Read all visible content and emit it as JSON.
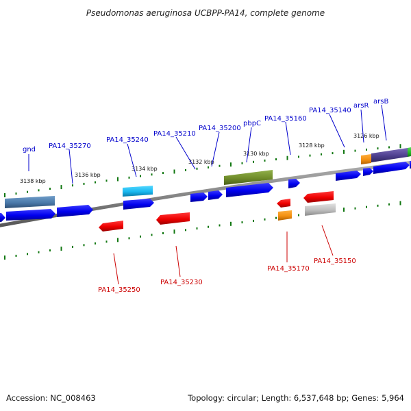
{
  "title": "Pseudomonas aeruginosa UCBPP-PA14, complete genome",
  "footer": {
    "accession": "Accession: NC_008463",
    "topology": "Topology: circular; Length: 6,537,648 bp; Genes: 5,964"
  },
  "colors": {
    "forward_gene": "#0000ee",
    "reverse_gene": "#ee0000",
    "tick": "#117711",
    "backbone": "#888888",
    "label_forward": "#0000cc",
    "label_reverse": "#cc0000"
  },
  "tick_labels": [
    "3138 kbp",
    "3136 kbp",
    "3134 kbp",
    "3132 kbp",
    "3130 kbp",
    "3128 kbp",
    "3126 kbp"
  ],
  "forward_labels": [
    "gnd",
    "PA14_35270",
    "PA14_35240",
    "PA14_35210",
    "PA14_35200",
    "pbpC",
    "PA14_35160",
    "PA14_35140",
    "arsR",
    "arsB"
  ],
  "reverse_labels": [
    "PA14_35250",
    "PA14_35230",
    "PA14_35170",
    "PA14_35150"
  ]
}
